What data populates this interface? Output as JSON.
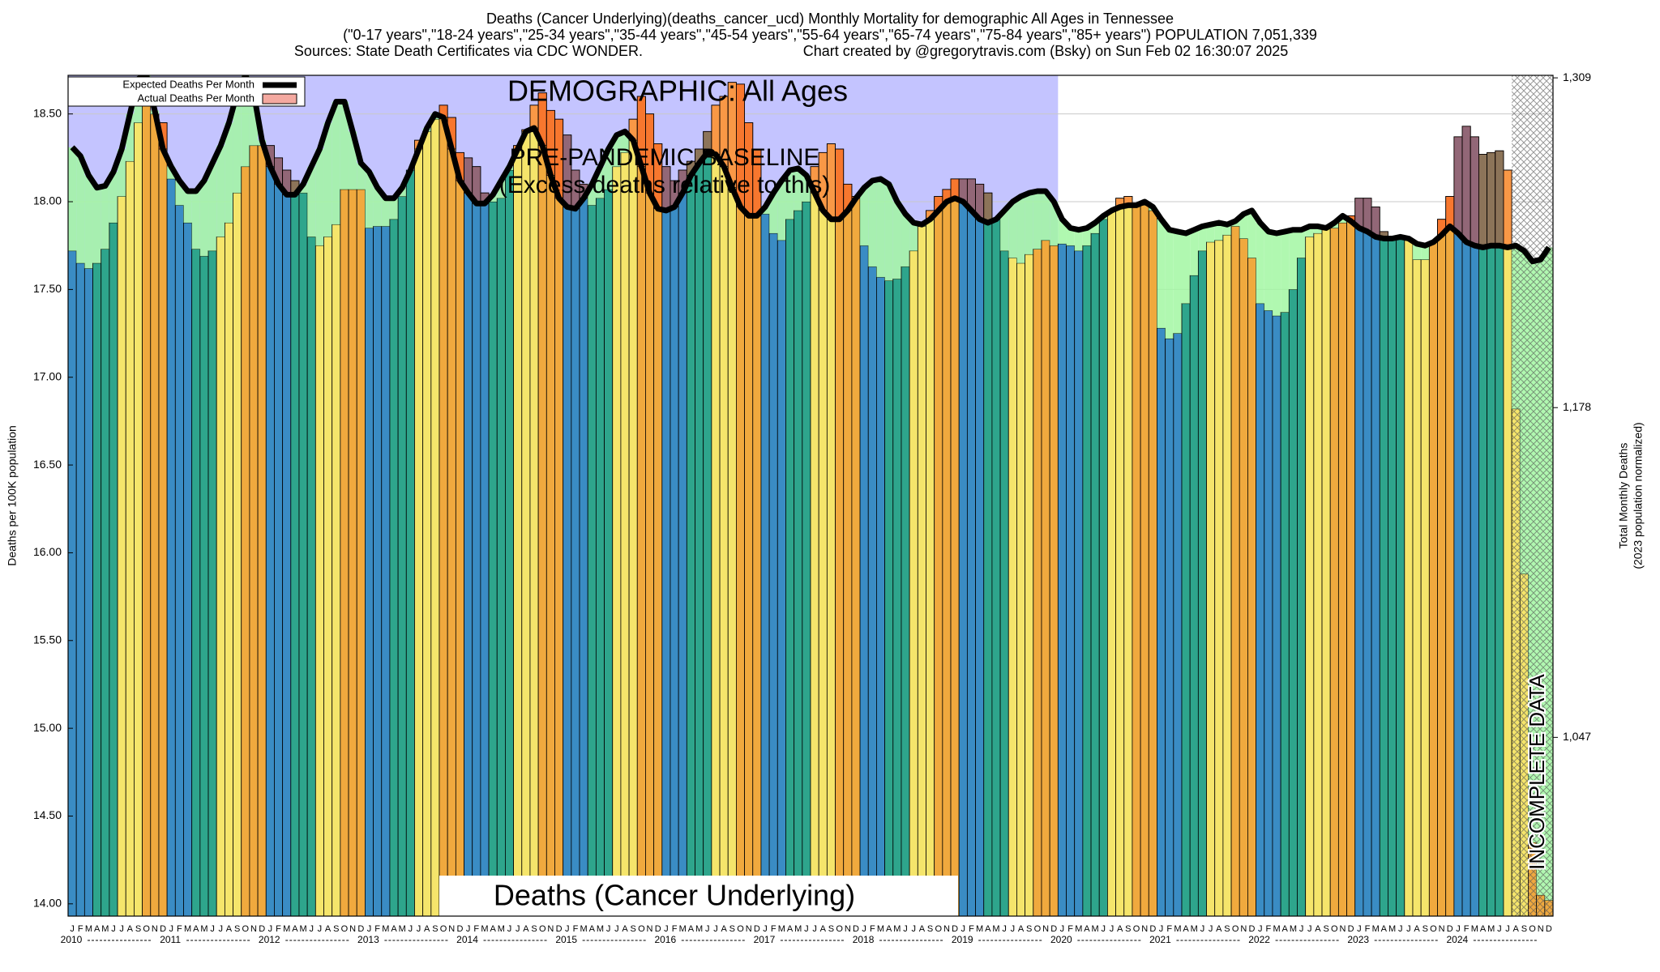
{
  "chart_data": {
    "type": "bar",
    "title": "Deaths (Cancer Underlying)(deaths_cancer_ucd) Monthly Mortality for demographic All Ages in Tennessee",
    "subtitle": "(\"0-17 years\",\"18-24 years\",\"25-34 years\",\"35-44 years\",\"45-54 years\",\"55-64 years\",\"65-74 years\",\"75-84 years\",\"85+ years\") POPULATION 7,051,339",
    "source": "Sources: State Death Certificates via CDC WONDER.",
    "credit": "Chart created by @gregorytravis.com (Bsky) on Sun Feb 02 16:30:07 2025",
    "y_label": "Deaths per 100K population",
    "y2_label": "Total Monthly Deaths",
    "y2_sublabel": "(2023 population normalized)",
    "annotations": {
      "demographic": "DEMOGRAPHIC: All Ages",
      "baseline": "PRE-PANDEMIC BASELINE",
      "baseline_note": "(Excess deaths relative to this)",
      "measure": "Deaths (Cancer Underlying)",
      "incomplete": "INCOMPLETE DATA"
    },
    "categories": [
      "J",
      "F",
      "M",
      "A",
      "M",
      "J",
      "J",
      "A",
      "S",
      "O",
      "N",
      "D",
      "J",
      "F",
      "M",
      "A",
      "M",
      "J",
      "J",
      "A",
      "S",
      "O",
      "N",
      "D",
      "J",
      "F",
      "M",
      "A",
      "M",
      "J",
      "J",
      "A",
      "S",
      "O",
      "N",
      "D",
      "J",
      "F",
      "M",
      "A",
      "M",
      "J",
      "J",
      "A",
      "S",
      "O",
      "N",
      "D",
      "J",
      "F",
      "M",
      "A",
      "M",
      "J",
      "J",
      "A",
      "S",
      "O",
      "N",
      "D",
      "J",
      "F",
      "M",
      "A",
      "M",
      "J",
      "J",
      "A",
      "S",
      "O",
      "N",
      "D",
      "J",
      "F",
      "M",
      "A",
      "M",
      "J",
      "J",
      "A",
      "S",
      "O",
      "N",
      "D",
      "J",
      "F",
      "M",
      "A",
      "M",
      "J",
      "J",
      "A",
      "S",
      "O",
      "N",
      "D",
      "J",
      "F",
      "M",
      "A",
      "M",
      "J",
      "J",
      "A",
      "S",
      "O",
      "N",
      "D",
      "J",
      "F",
      "M",
      "A",
      "M",
      "J",
      "J",
      "A",
      "S",
      "O",
      "N",
      "D",
      "J",
      "F",
      "M",
      "A",
      "M",
      "J",
      "J",
      "A",
      "S",
      "O",
      "N",
      "D",
      "J",
      "F",
      "M",
      "A",
      "M",
      "J",
      "J",
      "A",
      "S",
      "O",
      "N",
      "D",
      "J",
      "F",
      "M",
      "A",
      "M",
      "J",
      "J",
      "A",
      "S",
      "O",
      "N",
      "D",
      "J",
      "F",
      "M",
      "A",
      "M",
      "J",
      "J",
      "A",
      "S",
      "O",
      "N",
      "D",
      "J",
      "F",
      "M",
      "A",
      "M",
      "J",
      "J",
      "A",
      "S",
      "O",
      "N",
      "D"
    ],
    "years": [
      "2010",
      "2011",
      "2012",
      "2013",
      "2014",
      "2015",
      "2016",
      "2017",
      "2018",
      "2019",
      "2020",
      "2021",
      "2022",
      "2023",
      "2024"
    ],
    "month_colors": [
      "#3a8cc4",
      "#3a8cc4",
      "#3a8cc4",
      "#2ea58c",
      "#2ea58c",
      "#2ea58c",
      "#f5e56b",
      "#f5e56b",
      "#f5e56b",
      "#f0a93e",
      "#f0a93e",
      "#f0a93e"
    ],
    "deficit_color": "#a2f7a2",
    "excess_color": "#ff3a1a",
    "series": [
      {
        "name": "Actual Deaths Per Month",
        "color": "#f4a9a0",
        "values": [
          17.72,
          17.65,
          17.62,
          17.65,
          17.73,
          17.88,
          18.03,
          18.23,
          18.45,
          18.57,
          18.5,
          18.45,
          18.13,
          17.98,
          17.88,
          17.73,
          17.69,
          17.72,
          17.8,
          17.88,
          18.05,
          18.2,
          18.32,
          18.32,
          18.32,
          18.25,
          18.18,
          18.12,
          18.05,
          17.8,
          17.75,
          17.8,
          17.87,
          18.07,
          18.07,
          18.07,
          17.85,
          17.86,
          17.86,
          17.9,
          18.03,
          18.18,
          18.35,
          18.4,
          18.47,
          18.55,
          18.48,
          18.28,
          18.25,
          18.2,
          18.05,
          18.0,
          18.02,
          18.18,
          18.32,
          18.41,
          18.55,
          18.62,
          18.52,
          18.47,
          18.38,
          18.18,
          18.1,
          17.98,
          18.02,
          18.07,
          18.2,
          18.28,
          18.47,
          18.6,
          18.5,
          18.33,
          18.2,
          18.12,
          18.18,
          18.23,
          18.3,
          18.4,
          18.55,
          18.6,
          18.68,
          18.67,
          18.45,
          18.3,
          17.93,
          17.82,
          17.78,
          17.9,
          17.95,
          18.0,
          18.2,
          18.28,
          18.33,
          18.3,
          18.1,
          18.03,
          17.75,
          17.63,
          17.57,
          17.55,
          17.56,
          17.63,
          17.72,
          17.86,
          17.95,
          18.03,
          18.07,
          18.13,
          18.13,
          18.13,
          18.1,
          18.05,
          17.9,
          17.72,
          17.68,
          17.65,
          17.7,
          17.73,
          17.78,
          17.75,
          17.76,
          17.75,
          17.72,
          17.75,
          17.82,
          17.9,
          17.95,
          18.02,
          18.03,
          17.98,
          17.98,
          17.95,
          17.28,
          17.22,
          17.25,
          17.42,
          17.58,
          17.72,
          17.77,
          17.78,
          17.81,
          17.86,
          17.79,
          17.68,
          17.42,
          17.38,
          17.35,
          17.37,
          17.5,
          17.68,
          17.8,
          17.82,
          17.85,
          17.85,
          17.88,
          17.92,
          18.02,
          18.02,
          17.97,
          17.83,
          17.8,
          17.8,
          17.78,
          17.67,
          17.67,
          17.77,
          17.9,
          18.03,
          18.37,
          18.43,
          18.37,
          18.27,
          18.28,
          18.29,
          18.18,
          16.82,
          15.88,
          14.35,
          14.05,
          14.02
        ]
      },
      {
        "name": "Expected Deaths Per Month",
        "color": "#000000",
        "values": [
          18.31,
          18.26,
          18.15,
          18.08,
          18.09,
          18.17,
          18.3,
          18.5,
          18.7,
          18.72,
          18.52,
          18.3,
          18.2,
          18.12,
          18.06,
          18.06,
          18.12,
          18.22,
          18.32,
          18.45,
          18.62,
          18.72,
          18.62,
          18.35,
          18.2,
          18.1,
          18.04,
          18.04,
          18.1,
          18.2,
          18.3,
          18.45,
          18.57,
          18.57,
          18.4,
          18.22,
          18.17,
          18.08,
          18.02,
          18.02,
          18.08,
          18.18,
          18.3,
          18.42,
          18.5,
          18.48,
          18.3,
          18.12,
          18.05,
          17.99,
          17.99,
          18.04,
          18.12,
          18.2,
          18.3,
          18.4,
          18.42,
          18.32,
          18.15,
          18.02,
          17.97,
          17.96,
          18.02,
          18.1,
          18.2,
          18.3,
          18.38,
          18.4,
          18.35,
          18.2,
          18.05,
          17.96,
          17.95,
          17.97,
          18.05,
          18.15,
          18.22,
          18.28,
          18.27,
          18.2,
          18.08,
          17.97,
          17.92,
          17.92,
          17.97,
          18.05,
          18.12,
          18.18,
          18.19,
          18.15,
          18.05,
          17.95,
          17.9,
          17.9,
          17.95,
          18.02,
          18.08,
          18.12,
          18.13,
          18.1,
          18.0,
          17.93,
          17.88,
          17.87,
          17.9,
          17.95,
          18.0,
          18.02,
          18.0,
          17.95,
          17.9,
          17.88,
          17.9,
          17.95,
          18.0,
          18.03,
          18.05,
          18.06,
          18.06,
          18.0,
          17.9,
          17.85,
          17.84,
          17.85,
          17.88,
          17.92,
          17.95,
          17.97,
          17.98,
          17.98,
          18.0,
          17.97,
          17.9,
          17.84,
          17.83,
          17.82,
          17.84,
          17.86,
          17.87,
          17.88,
          17.87,
          17.89,
          17.93,
          17.95,
          17.88,
          17.83,
          17.82,
          17.83,
          17.84,
          17.84,
          17.86,
          17.86,
          17.85,
          17.88,
          17.92,
          17.89,
          17.85,
          17.83,
          17.8,
          17.79,
          17.79,
          17.8,
          17.79,
          17.76,
          17.75,
          17.77,
          17.81,
          17.86,
          17.82,
          17.77,
          17.75,
          17.74,
          17.75,
          17.75,
          17.74,
          17.75,
          17.72,
          17.66,
          17.67,
          17.74
        ]
      }
    ],
    "ylim": [
      13.93,
      18.72
    ],
    "yticks": [
      {
        "value": 14,
        "label": "14.00"
      },
      {
        "value": 14.5,
        "label": "14.50"
      },
      {
        "value": 15,
        "label": "15.00"
      },
      {
        "value": 15.5,
        "label": "15.50"
      },
      {
        "value": 16,
        "label": "16.00"
      },
      {
        "value": 16.5,
        "label": "16.50"
      },
      {
        "value": 17,
        "label": "17.00"
      },
      {
        "value": 17.5,
        "label": "17.50"
      },
      {
        "value": 18,
        "label": "18.00"
      },
      {
        "value": 18.5,
        "label": "18.50"
      }
    ],
    "y2lim": [
      976,
      1310
    ],
    "y2ticks": [
      {
        "value": 1047,
        "label": "1,047"
      },
      {
        "value": 1178,
        "label": "1,178"
      },
      {
        "value": 1309,
        "label": "1,309"
      }
    ],
    "grid": true,
    "legend": "upper left"
  }
}
